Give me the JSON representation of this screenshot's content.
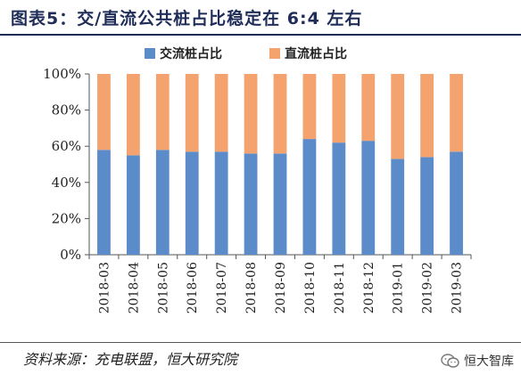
{
  "title": "图表5：交/直流公共桩占比稳定在 6:4 左右",
  "source": "资料来源：充电联盟，恒大研究院",
  "watermark": "恒大智库",
  "chart_data": {
    "type": "bar",
    "stacked": true,
    "percent": true,
    "categories": [
      "2018-03",
      "2018-04",
      "2018-05",
      "2018-06",
      "2018-07",
      "2018-08",
      "2018-09",
      "2018-10",
      "2018-11",
      "2018-12",
      "2019-01",
      "2019-02",
      "2019-03"
    ],
    "series": [
      {
        "name": "交流桩占比",
        "color": "#5b8cc9",
        "values": [
          58,
          55,
          58,
          57,
          57,
          56,
          56,
          64,
          62,
          63,
          53,
          54,
          57
        ]
      },
      {
        "name": "直流桩占比",
        "color": "#f4a36f",
        "values": [
          42,
          45,
          42,
          43,
          43,
          44,
          44,
          36,
          38,
          37,
          47,
          46,
          43
        ]
      }
    ],
    "ylim": [
      0,
      100
    ],
    "yticks": [
      "0%",
      "20%",
      "40%",
      "60%",
      "80%",
      "100%"
    ],
    "legend": "top-center",
    "grid": false
  }
}
